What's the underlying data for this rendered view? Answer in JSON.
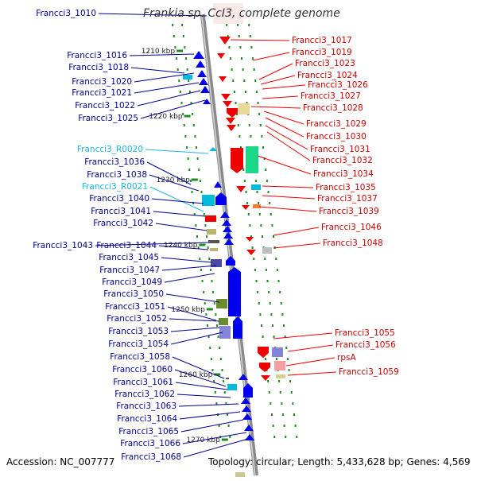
{
  "title": "Frankia sp. CcI3, complete genome",
  "footer": {
    "accession": "Accession: NC_007777",
    "topology": "Topology: circular; Length: 5,433,628 bp; Genes: 4,569"
  },
  "colors": {
    "backbone": "#a9a9a9",
    "tick": "#1e8c1e",
    "forward": "#0000ee",
    "reverse": "#ee0000",
    "rna": "#00bbdd"
  },
  "ruler": [
    "1210 kbp",
    "1220 kbp",
    "1230 kbp",
    "1240 kbp",
    "1250 kbp",
    "1260 kbp",
    "1270 kbp"
  ],
  "left_labels": [
    {
      "text": "Francci3_1010",
      "kind": "gene"
    },
    {
      "text": "Francci3_1016",
      "kind": "gene"
    },
    {
      "text": "Francci3_1018",
      "kind": "gene"
    },
    {
      "text": "Francci3_1020",
      "kind": "gene"
    },
    {
      "text": "Francci3_1021",
      "kind": "gene"
    },
    {
      "text": "Francci3_1022",
      "kind": "gene"
    },
    {
      "text": "Francci3_1025",
      "kind": "gene"
    },
    {
      "text": "Francci3_R0020",
      "kind": "rna"
    },
    {
      "text": "Francci3_1036",
      "kind": "gene"
    },
    {
      "text": "Francci3_1038",
      "kind": "gene"
    },
    {
      "text": "Francci3_R0021",
      "kind": "rna"
    },
    {
      "text": "Francci3_1040",
      "kind": "gene"
    },
    {
      "text": "Francci3_1041",
      "kind": "gene"
    },
    {
      "text": "Francci3_1042",
      "kind": "gene"
    },
    {
      "text": "Francci3_1043",
      "kind": "gene"
    },
    {
      "text": "Francci3_1044",
      "kind": "gene"
    },
    {
      "text": "Francci3_1045",
      "kind": "gene"
    },
    {
      "text": "Francci3_1047",
      "kind": "gene"
    },
    {
      "text": "Francci3_1049",
      "kind": "gene"
    },
    {
      "text": "Francci3_1050",
      "kind": "gene"
    },
    {
      "text": "Francci3_1051",
      "kind": "gene"
    },
    {
      "text": "Francci3_1052",
      "kind": "gene"
    },
    {
      "text": "Francci3_1053",
      "kind": "gene"
    },
    {
      "text": "Francci3_1054",
      "kind": "gene"
    },
    {
      "text": "Francci3_1058",
      "kind": "gene"
    },
    {
      "text": "Francci3_1060",
      "kind": "gene"
    },
    {
      "text": "Francci3_1061",
      "kind": "gene"
    },
    {
      "text": "Francci3_1062",
      "kind": "gene"
    },
    {
      "text": "Francci3_1063",
      "kind": "gene"
    },
    {
      "text": "Francci3_1064",
      "kind": "gene"
    },
    {
      "text": "Francci3_1065",
      "kind": "gene"
    },
    {
      "text": "Francci3_1066",
      "kind": "gene"
    },
    {
      "text": "Francci3_1068",
      "kind": "gene"
    }
  ],
  "right_labels": [
    {
      "text": "Francci3_1017"
    },
    {
      "text": "Francci3_1019"
    },
    {
      "text": "Francci3_1023"
    },
    {
      "text": "Francci3_1024"
    },
    {
      "text": "Francci3_1026"
    },
    {
      "text": "Francci3_1027"
    },
    {
      "text": "Francci3_1028"
    },
    {
      "text": "Francci3_1029"
    },
    {
      "text": "Francci3_1030"
    },
    {
      "text": "Francci3_1031"
    },
    {
      "text": "Francci3_1032"
    },
    {
      "text": "Francci3_1034"
    },
    {
      "text": "Francci3_1035"
    },
    {
      "text": "Francci3_1037"
    },
    {
      "text": "Francci3_1039"
    },
    {
      "text": "Francci3_1046"
    },
    {
      "text": "Francci3_1048"
    },
    {
      "text": "Francci3_1055"
    },
    {
      "text": "Francci3_1056"
    },
    {
      "text": "rpsA"
    },
    {
      "text": "Francci3_1059"
    }
  ]
}
